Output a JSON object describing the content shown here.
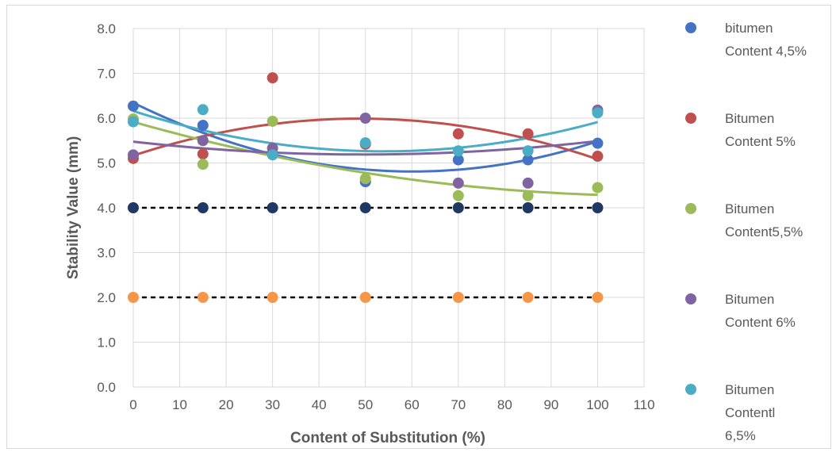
{
  "chart_data": {
    "type": "scatter",
    "xlabel": "Content of Substitution (%)",
    "ylabel": "Stability Value  (mm)",
    "xlim": [
      0,
      110
    ],
    "ylim": [
      0,
      8
    ],
    "x_ticks": [
      "0",
      "10",
      "20",
      "30",
      "40",
      "50",
      "60",
      "70",
      "80",
      "90",
      "100",
      "110"
    ],
    "y_ticks": [
      "0.0",
      "1.0",
      "2.0",
      "3.0",
      "4.0",
      "5.0",
      "6.0",
      "7.0",
      "8.0"
    ],
    "grid": true,
    "legend_position": "right",
    "series": [
      {
        "name": "bitumen Content 4,5%",
        "legend_lines": [
          "bitumen",
          "Content 4,5%"
        ],
        "color": "#4472c4",
        "x": [
          0,
          15,
          30,
          50,
          70,
          85,
          100
        ],
        "y": [
          6.27,
          5.84,
          5.2,
          4.58,
          5.07,
          5.07,
          5.44
        ],
        "trend": true
      },
      {
        "name": "Bitumen Content 5%",
        "legend_lines": [
          "Bitumen",
          "Content 5%"
        ],
        "color": "#c0504d",
        "x": [
          0,
          15,
          30,
          50,
          70,
          85,
          100
        ],
        "y": [
          5.1,
          5.2,
          6.9,
          5.42,
          5.65,
          5.65,
          5.15
        ],
        "trend": true
      },
      {
        "name": "Bitumen Content5,5%",
        "legend_lines": [
          "Bitumen",
          "Content5,5%"
        ],
        "color": "#9bbb59",
        "x": [
          0,
          15,
          30,
          50,
          70,
          85,
          100
        ],
        "y": [
          5.98,
          4.97,
          5.93,
          4.65,
          4.27,
          4.27,
          4.45
        ],
        "trend": true
      },
      {
        "name": "Bitumen Content 6%",
        "legend_lines": [
          "Bitumen",
          "Content 6%"
        ],
        "color": "#8064a2",
        "x": [
          0,
          15,
          30,
          50,
          70,
          85,
          100
        ],
        "y": [
          5.18,
          5.5,
          5.33,
          6.0,
          4.55,
          4.55,
          6.18
        ],
        "trend": true
      },
      {
        "name": "Bitumen Contentl 6,5%",
        "legend_lines": [
          "Bitumen",
          "Contentl",
          "6,5%"
        ],
        "color": "#4bacc6",
        "x": [
          0,
          15,
          30,
          50,
          70,
          85,
          100
        ],
        "y": [
          5.92,
          6.19,
          5.18,
          5.45,
          5.27,
          5.27,
          6.12
        ],
        "trend": true
      }
    ],
    "reference_series": [
      {
        "color": "#1f3864",
        "x": [
          0,
          15,
          30,
          50,
          70,
          85,
          100
        ],
        "y": [
          4,
          4,
          4,
          4,
          4,
          4,
          4
        ],
        "line": "dashed"
      },
      {
        "color": "#f79646",
        "x": [
          0,
          15,
          30,
          50,
          70,
          85,
          100
        ],
        "y": [
          2,
          2,
          2,
          2,
          2,
          2,
          2
        ],
        "line": "dashed"
      }
    ]
  }
}
